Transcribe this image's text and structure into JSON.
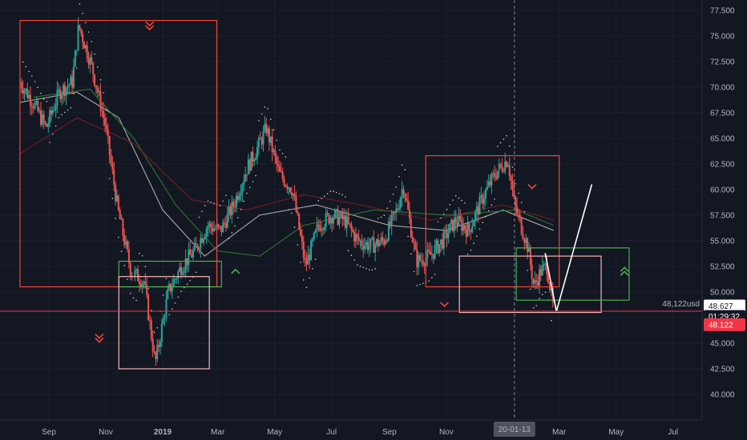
{
  "chart_data": {
    "type": "candlestick",
    "title": "",
    "xlabel": "",
    "ylabel": "",
    "ylim": [
      37.5,
      78.5
    ],
    "y_ticks": [
      "77.500",
      "75.000",
      "72.500",
      "70.000",
      "67.500",
      "65.000",
      "62.500",
      "60.000",
      "57.500",
      "55.000",
      "52.500",
      "50.000",
      "47.500",
      "45.000",
      "42.500",
      "40.000"
    ],
    "x_ticks": [
      "Sep",
      "Nov",
      "2019",
      "Mar",
      "May",
      "Jul",
      "Sep",
      "Nov",
      "Mar",
      "May",
      "Jul"
    ],
    "crosshair_date_label": "20-01-13",
    "price_line": {
      "value": 48.122,
      "label": "48,122usd"
    },
    "axis_badges": [
      {
        "label": "48.627",
        "value": 48.627,
        "color": "#ffffff",
        "text_color": "#131722"
      },
      {
        "label": "01:29:32",
        "value": 47.6,
        "color": "#131722",
        "text_color": "#ffffff"
      },
      {
        "label": "48.122",
        "value": 46.8,
        "color": "#f23645",
        "text_color": "#ffffff"
      }
    ],
    "close_series": [
      {
        "x": "2018-08-01",
        "y": 70.5
      },
      {
        "x": "2018-08-15",
        "y": 68.5
      },
      {
        "x": "2018-08-29",
        "y": 66.0
      },
      {
        "x": "2018-09-12",
        "y": 69.5
      },
      {
        "x": "2018-09-26",
        "y": 70.5
      },
      {
        "x": "2018-10-03",
        "y": 76.0
      },
      {
        "x": "2018-10-17",
        "y": 72.0
      },
      {
        "x": "2018-10-31",
        "y": 66.5
      },
      {
        "x": "2018-11-14",
        "y": 58.0
      },
      {
        "x": "2018-11-28",
        "y": 52.0
      },
      {
        "x": "2018-12-12",
        "y": 51.0
      },
      {
        "x": "2018-12-24",
        "y": 43.0
      },
      {
        "x": "2019-01-07",
        "y": 50.0
      },
      {
        "x": "2019-01-21",
        "y": 52.5
      },
      {
        "x": "2019-02-04",
        "y": 54.0
      },
      {
        "x": "2019-02-18",
        "y": 56.5
      },
      {
        "x": "2019-03-04",
        "y": 56.0
      },
      {
        "x": "2019-03-18",
        "y": 58.5
      },
      {
        "x": "2019-04-01",
        "y": 62.0
      },
      {
        "x": "2019-04-15",
        "y": 64.5
      },
      {
        "x": "2019-04-22",
        "y": 66.0
      },
      {
        "x": "2019-05-06",
        "y": 61.5
      },
      {
        "x": "2019-05-20",
        "y": 60.0
      },
      {
        "x": "2019-06-03",
        "y": 52.5
      },
      {
        "x": "2019-06-17",
        "y": 56.5
      },
      {
        "x": "2019-07-01",
        "y": 57.5
      },
      {
        "x": "2019-07-15",
        "y": 57.0
      },
      {
        "x": "2019-07-29",
        "y": 55.0
      },
      {
        "x": "2019-08-12",
        "y": 54.5
      },
      {
        "x": "2019-08-26",
        "y": 55.0
      },
      {
        "x": "2019-09-09",
        "y": 58.0
      },
      {
        "x": "2019-09-16",
        "y": 60.5
      },
      {
        "x": "2019-09-30",
        "y": 53.0
      },
      {
        "x": "2019-10-14",
        "y": 53.5
      },
      {
        "x": "2019-10-28",
        "y": 55.0
      },
      {
        "x": "2019-11-11",
        "y": 57.0
      },
      {
        "x": "2019-11-25",
        "y": 56.0
      },
      {
        "x": "2019-12-09",
        "y": 59.0
      },
      {
        "x": "2019-12-23",
        "y": 61.5
      },
      {
        "x": "2020-01-06",
        "y": 63.0
      },
      {
        "x": "2020-01-13",
        "y": 58.5
      },
      {
        "x": "2020-01-27",
        "y": 54.5
      },
      {
        "x": "2020-02-03",
        "y": 50.5
      },
      {
        "x": "2020-02-10",
        "y": 52.0
      },
      {
        "x": "2020-02-17",
        "y": 52.5
      },
      {
        "x": "2020-02-24",
        "y": 48.1
      }
    ],
    "moving_averages": [
      {
        "name": "",
        "color": "#b8b8b8",
        "points": [
          {
            "x": "2018-08-01",
            "y": 68.5
          },
          {
            "x": "2018-10-01",
            "y": 69.5
          },
          {
            "x": "2018-11-15",
            "y": 67.0
          },
          {
            "x": "2019-01-01",
            "y": 58.0
          },
          {
            "x": "2019-02-15",
            "y": 53.5
          },
          {
            "x": "2019-04-15",
            "y": 57.5
          },
          {
            "x": "2019-06-15",
            "y": 58.5
          },
          {
            "x": "2019-09-01",
            "y": 56.5
          },
          {
            "x": "2019-11-01",
            "y": 56.0
          },
          {
            "x": "2020-01-01",
            "y": 58.0
          },
          {
            "x": "2020-02-24",
            "y": 56.0
          }
        ]
      },
      {
        "name": "",
        "color": "#2e7d32",
        "points": [
          {
            "x": "2018-08-15",
            "y": 69.0
          },
          {
            "x": "2018-10-15",
            "y": 69.8
          },
          {
            "x": "2018-12-01",
            "y": 65.0
          },
          {
            "x": "2019-01-15",
            "y": 58.5
          },
          {
            "x": "2019-03-01",
            "y": 54.0
          },
          {
            "x": "2019-04-15",
            "y": 53.5
          },
          {
            "x": "2019-06-01",
            "y": 56.5
          },
          {
            "x": "2019-08-15",
            "y": 58.0
          },
          {
            "x": "2019-11-01",
            "y": 57.5
          },
          {
            "x": "2020-01-15",
            "y": 58.0
          },
          {
            "x": "2020-02-24",
            "y": 56.5
          }
        ]
      },
      {
        "name": "",
        "color": "#7b1f25",
        "points": [
          {
            "x": "2018-08-01",
            "y": 63.5
          },
          {
            "x": "2018-10-01",
            "y": 67.0
          },
          {
            "x": "2018-12-01",
            "y": 64.5
          },
          {
            "x": "2019-02-01",
            "y": 59.0
          },
          {
            "x": "2019-04-01",
            "y": 58.0
          },
          {
            "x": "2019-06-01",
            "y": 59.5
          },
          {
            "x": "2019-08-01",
            "y": 58.5
          },
          {
            "x": "2019-10-15",
            "y": 57.0
          },
          {
            "x": "2020-01-01",
            "y": 58.5
          },
          {
            "x": "2020-02-24",
            "y": 57.0
          }
        ]
      }
    ],
    "zones": [
      {
        "x0": "2018-08-01",
        "x1": "2019-02-28",
        "y0": 50.5,
        "y1": 76.5,
        "color": "#f44336"
      },
      {
        "x0": "2018-11-15",
        "x1": "2019-03-05",
        "y0": 50.5,
        "y1": 53.0,
        "color": "#4caf50"
      },
      {
        "x0": "2018-11-15",
        "x1": "2019-02-20",
        "y0": 42.5,
        "y1": 51.5,
        "color": "#f8b4b4"
      },
      {
        "x0": "2019-10-10",
        "x1": "2020-03-01",
        "y0": 50.5,
        "y1": 63.3,
        "color": "#f44336"
      },
      {
        "x0": "2019-11-15",
        "x1": "2020-04-15",
        "y0": 48.0,
        "y1": 53.5,
        "color": "#f8b4b4"
      },
      {
        "x0": "2020-01-15",
        "x1": "2020-05-15",
        "y0": 49.2,
        "y1": 54.3,
        "color": "#4caf50"
      }
    ],
    "signals": [
      {
        "x": "2018-12-18",
        "y": 76.0,
        "direction": "down",
        "style": "double",
        "color": "#f44336"
      },
      {
        "x": "2019-03-20",
        "y": 52.0,
        "direction": "up",
        "style": "single",
        "color": "#4caf50"
      },
      {
        "x": "2018-10-25",
        "y": 45.5,
        "direction": "down",
        "style": "double",
        "color": "#f44336"
      },
      {
        "x": "2020-02-01",
        "y": 60.3,
        "direction": "down",
        "style": "single",
        "color": "#f44336"
      },
      {
        "x": "2019-10-30",
        "y": 48.8,
        "direction": "down",
        "style": "single",
        "color": "#f44336"
      },
      {
        "x": "2020-05-10",
        "y": 52.0,
        "direction": "up",
        "style": "double",
        "color": "#4caf50"
      }
    ],
    "projection": [
      {
        "x": "2020-02-15",
        "y": 53.8
      },
      {
        "x": "2020-02-27",
        "y": 48.1
      },
      {
        "x": "2020-04-05",
        "y": 60.5
      }
    ],
    "candle_colors": {
      "up": "#26a69a",
      "down": "#ef5350"
    }
  }
}
